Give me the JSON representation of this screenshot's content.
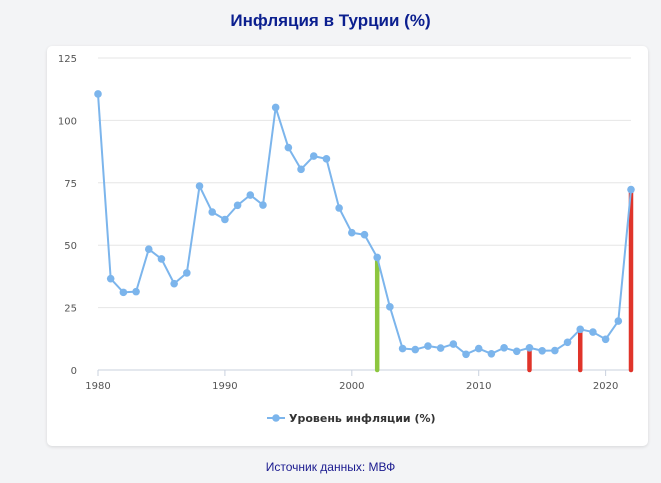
{
  "title": "Инфляция в Турции (%)",
  "source": "Источник данных: МВФ",
  "colors": {
    "line": "#7cb5ec",
    "highlight_green": "#8dc63f",
    "highlight_red": "#e0342a"
  },
  "chart_data": {
    "type": "line",
    "title": "Инфляция в Турции (%)",
    "xlabel": "",
    "ylabel": "",
    "xlim": [
      1980,
      2022
    ],
    "ylim": [
      0,
      125
    ],
    "x_ticks": [
      1980,
      1990,
      2000,
      2010,
      2020
    ],
    "y_ticks": [
      0,
      25,
      50,
      75,
      100,
      125
    ],
    "grid": "horizontal",
    "legend_position": "bottom-center",
    "series": [
      {
        "name": "Уровень инфляции (%)",
        "x": [
          1980,
          1981,
          1982,
          1983,
          1984,
          1985,
          1986,
          1987,
          1988,
          1989,
          1990,
          1991,
          1992,
          1993,
          1994,
          1995,
          1996,
          1997,
          1998,
          1999,
          2000,
          2001,
          2002,
          2003,
          2004,
          2005,
          2006,
          2007,
          2008,
          2009,
          2010,
          2011,
          2012,
          2013,
          2014,
          2015,
          2016,
          2017,
          2018,
          2019,
          2020,
          2021,
          2022
        ],
        "y": [
          110.6,
          36.6,
          31.1,
          31.4,
          48.4,
          44.5,
          34.6,
          38.9,
          73.7,
          63.3,
          60.3,
          66.0,
          70.1,
          66.1,
          105.2,
          89.1,
          80.4,
          85.7,
          84.6,
          64.9,
          55.0,
          54.2,
          45.1,
          25.3,
          8.6,
          8.2,
          9.6,
          8.8,
          10.4,
          6.3,
          8.6,
          6.5,
          8.9,
          7.5,
          8.9,
          7.7,
          7.8,
          11.1,
          16.3,
          15.2,
          12.3,
          19.6,
          72.3
        ]
      }
    ],
    "highlights": [
      {
        "x": 2002,
        "value": 45.1,
        "color": "#8dc63f"
      },
      {
        "x": 2014,
        "value": 8.9,
        "color": "#e0342a"
      },
      {
        "x": 2018,
        "value": 16.3,
        "color": "#e0342a"
      },
      {
        "x": 2022,
        "value": 72.3,
        "color": "#e0342a"
      }
    ]
  }
}
